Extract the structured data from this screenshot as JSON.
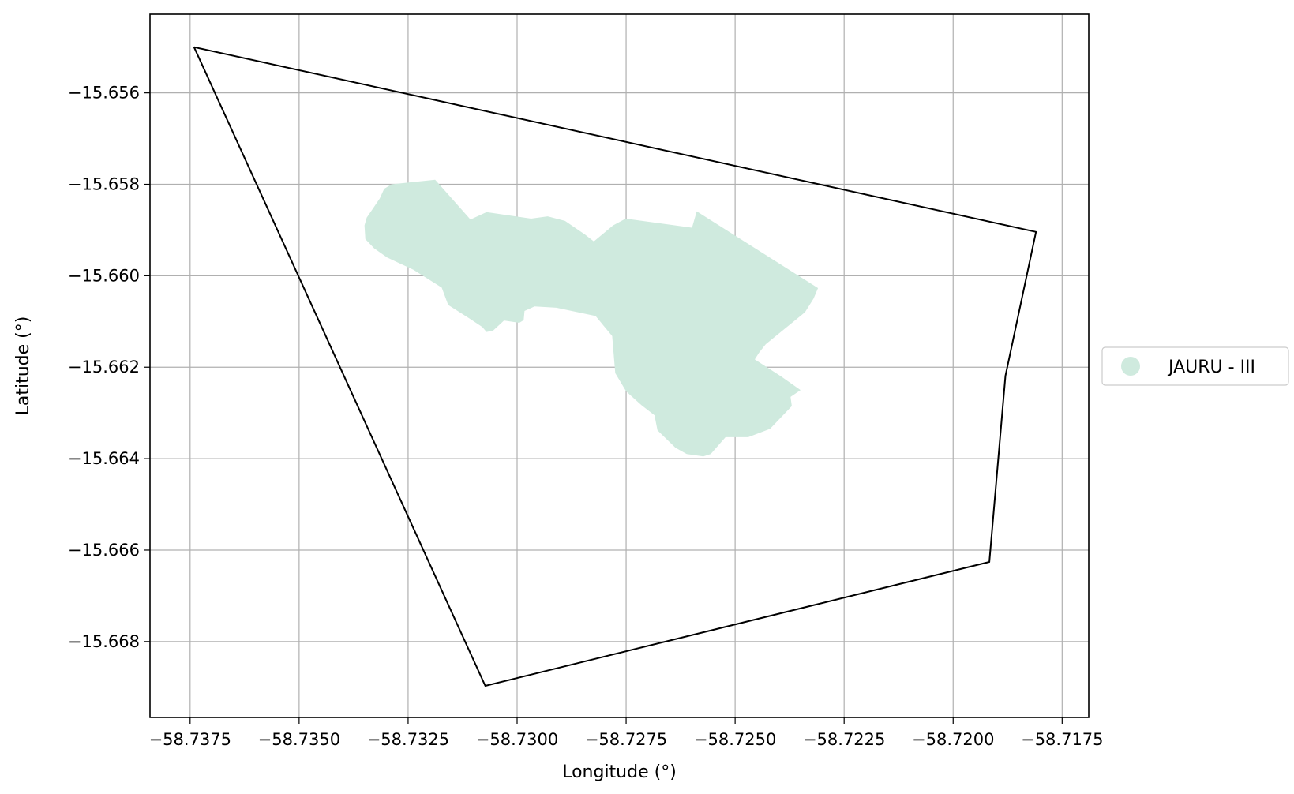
{
  "chart_data": {
    "type": "map",
    "title": "",
    "xlabel": "Longitude (°)",
    "ylabel": "Latitude (°)",
    "xlim": [
      -58.73842,
      -58.71689
    ],
    "ylim": [
      -15.66966,
      -15.65428
    ],
    "x_ticks": [
      {
        "value": -58.7375,
        "label": "−58.7375"
      },
      {
        "value": -58.735,
        "label": "−58.7350"
      },
      {
        "value": -58.7325,
        "label": "−58.7325"
      },
      {
        "value": -58.73,
        "label": "−58.7300"
      },
      {
        "value": -58.7275,
        "label": "−58.7275"
      },
      {
        "value": -58.725,
        "label": "−58.7250"
      },
      {
        "value": -58.7225,
        "label": "−58.7225"
      },
      {
        "value": -58.72,
        "label": "−58.7200"
      },
      {
        "value": -58.7175,
        "label": "−58.7175"
      }
    ],
    "y_ticks": [
      {
        "value": -15.656,
        "label": "−15.656"
      },
      {
        "value": -15.658,
        "label": "−15.658"
      },
      {
        "value": -15.66,
        "label": "−15.660"
      },
      {
        "value": -15.662,
        "label": "−15.662"
      },
      {
        "value": -15.664,
        "label": "−15.664"
      },
      {
        "value": -15.666,
        "label": "−15.666"
      },
      {
        "value": -15.668,
        "label": "−15.668"
      }
    ],
    "grid": true,
    "legend": {
      "placement": "right",
      "entries": [
        {
          "label": "JAURU - III",
          "color": "#cfeade"
        }
      ]
    },
    "boundary": {
      "color": "#000000",
      "lon": [
        -58.73741,
        -58.7181,
        -58.7188,
        -58.71917,
        -58.73073,
        -58.73741
      ],
      "lat": [
        -15.655,
        -15.65904,
        -15.66219,
        -15.66626,
        -15.66897,
        -15.655
      ]
    },
    "area": {
      "color": "#cfeade",
      "lon": [
        -58.72588,
        -58.7231,
        -58.7232,
        -58.7234,
        -58.7243,
        -58.72445,
        -58.72455,
        -58.72395,
        -58.7235,
        -58.72373,
        -58.7237,
        -58.7242,
        -58.7247,
        -58.72522,
        -58.72556,
        -58.72573,
        -58.72611,
        -58.72637,
        -58.72678,
        -58.72685,
        -58.72715,
        -58.7275,
        -58.72775,
        -58.72782,
        -58.7282,
        -58.7291,
        -58.7296,
        -58.72983,
        -58.72985,
        -58.72995,
        -58.7303,
        -58.73055,
        -58.7307,
        -58.7308,
        -58.7311,
        -58.73158,
        -58.73173,
        -58.73238,
        -58.73298,
        -58.73328,
        -58.73348,
        -58.7335,
        -58.73345,
        -58.7333,
        -58.73315,
        -58.73305,
        -58.73288,
        -58.73188,
        -58.73107,
        -58.7307,
        -58.72968,
        -58.7293,
        -58.7289,
        -58.72844,
        -58.72824,
        -58.7278,
        -58.72751,
        -58.72599,
        -58.72588
      ],
      "lat": [
        -15.65859,
        -15.66027,
        -15.6605,
        -15.6608,
        -15.6615,
        -15.66168,
        -15.66183,
        -15.6622,
        -15.6625,
        -15.66265,
        -15.66285,
        -15.66335,
        -15.66353,
        -15.66353,
        -15.6639,
        -15.66395,
        -15.6639,
        -15.66376,
        -15.66338,
        -15.66305,
        -15.66283,
        -15.66253,
        -15.66213,
        -15.66132,
        -15.66088,
        -15.6607,
        -15.66067,
        -15.66077,
        -15.66097,
        -15.66103,
        -15.66098,
        -15.6612,
        -15.66123,
        -15.66112,
        -15.66093,
        -15.66064,
        -15.66026,
        -15.65987,
        -15.6596,
        -15.6594,
        -15.6592,
        -15.6589,
        -15.65873,
        -15.65852,
        -15.65831,
        -15.6581,
        -15.658,
        -15.6579,
        -15.65877,
        -15.65861,
        -15.65875,
        -15.6587,
        -15.6588,
        -15.6591,
        -15.65925,
        -15.6589,
        -15.65875,
        -15.65895,
        -15.65859
      ]
    }
  }
}
